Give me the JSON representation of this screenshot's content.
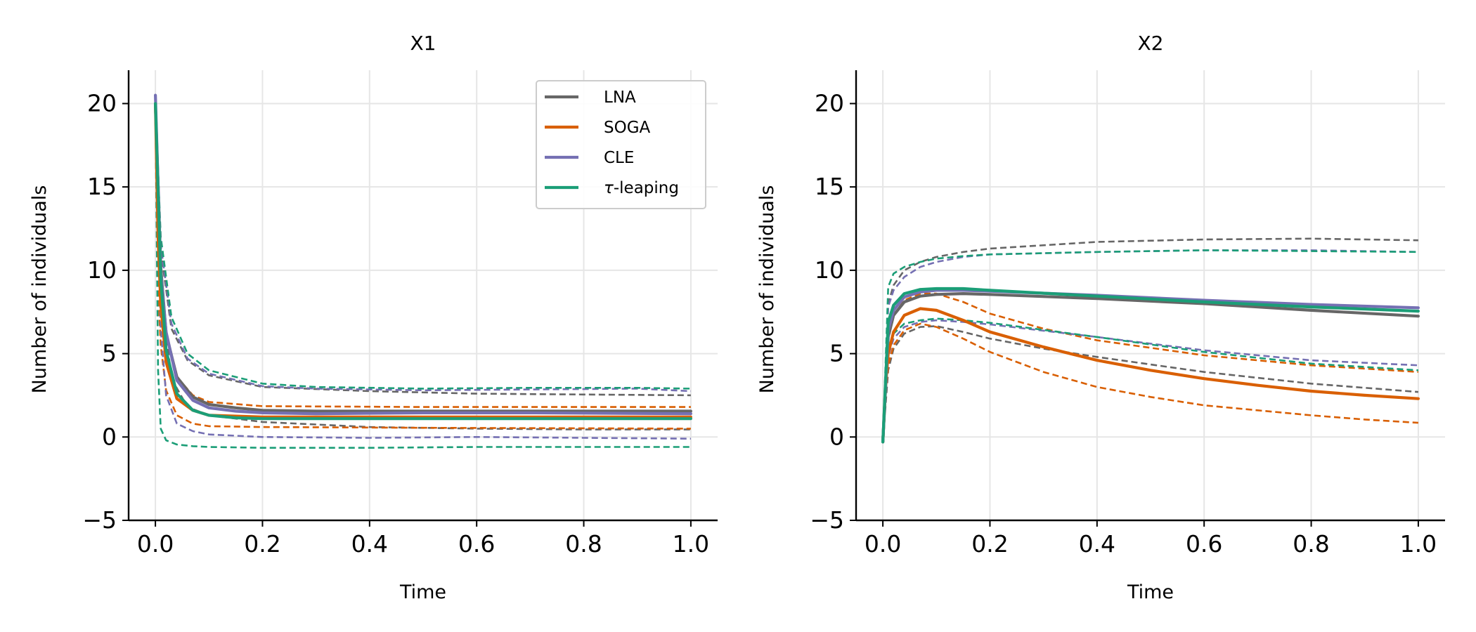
{
  "chart_data": [
    {
      "type": "line",
      "title": "X1",
      "xlabel": "Time",
      "ylabel": "Number of individuals",
      "xlim": [
        -0.05,
        1.05
      ],
      "ylim": [
        -5,
        22
      ],
      "xticks": [
        "0.0",
        "0.2",
        "0.4",
        "0.6",
        "0.8",
        "1.0"
      ],
      "yticks": [
        "−5",
        "0",
        "5",
        "10",
        "15",
        "20"
      ],
      "grid": true,
      "legend": "top-right",
      "series": [
        {
          "name": "LNA",
          "color": "#666666",
          "line": "solid",
          "x": [
            0,
            0.01,
            0.02,
            0.04,
            0.07,
            0.1,
            0.15,
            0.2,
            0.3,
            0.5,
            0.7,
            1.0
          ],
          "y": [
            20,
            10.2,
            6.2,
            3.6,
            2.4,
            1.95,
            1.75,
            1.6,
            1.55,
            1.55,
            1.55,
            1.55
          ]
        },
        {
          "name": "LNA upper",
          "color": "#666666",
          "line": "dashed",
          "x": [
            0,
            0.01,
            0.03,
            0.06,
            0.1,
            0.2,
            0.4,
            0.6,
            0.8,
            1.0
          ],
          "y": [
            20,
            11.2,
            6.5,
            4.6,
            3.7,
            3.0,
            2.75,
            2.6,
            2.55,
            2.5
          ]
        },
        {
          "name": "LNA lower",
          "color": "#666666",
          "line": "dashed",
          "x": [
            0,
            0.01,
            0.03,
            0.06,
            0.1,
            0.2,
            0.4,
            0.6,
            0.8,
            1.0
          ],
          "y": [
            20,
            9.2,
            3.5,
            1.8,
            1.3,
            0.9,
            0.6,
            0.5,
            0.45,
            0.45
          ]
        },
        {
          "name": "SOGA",
          "color": "#d95f02",
          "line": "solid",
          "x": [
            0,
            0.005,
            0.01,
            0.02,
            0.04,
            0.07,
            0.1,
            0.15,
            0.2,
            0.3,
            0.5,
            1.0
          ],
          "y": [
            20,
            12,
            8,
            4.5,
            2.3,
            1.6,
            1.3,
            1.25,
            1.2,
            1.2,
            1.2,
            1.2
          ]
        },
        {
          "name": "SOGA upper",
          "color": "#d95f02",
          "line": "dashed",
          "x": [
            0,
            0.005,
            0.01,
            0.02,
            0.04,
            0.07,
            0.1,
            0.2,
            0.5,
            1.0
          ],
          "y": [
            20,
            15,
            10.5,
            6.3,
            3.6,
            2.5,
            2.1,
            1.85,
            1.8,
            1.8
          ]
        },
        {
          "name": "SOGA lower",
          "color": "#d95f02",
          "line": "dashed",
          "x": [
            0,
            0.005,
            0.01,
            0.02,
            0.04,
            0.07,
            0.1,
            0.2,
            0.5,
            1.0
          ],
          "y": [
            20,
            9,
            5.5,
            2.8,
            1.3,
            0.8,
            0.65,
            0.6,
            0.55,
            0.5
          ]
        },
        {
          "name": "CLE",
          "color": "#7570b3",
          "line": "solid",
          "x": [
            0,
            0.01,
            0.02,
            0.04,
            0.07,
            0.1,
            0.15,
            0.2,
            0.3,
            0.5,
            0.7,
            1.0
          ],
          "y": [
            20.5,
            9.8,
            6.3,
            3.4,
            2.2,
            1.75,
            1.55,
            1.45,
            1.4,
            1.45,
            1.45,
            1.4
          ]
        },
        {
          "name": "CLE upper",
          "color": "#7570b3",
          "line": "dashed",
          "x": [
            0,
            0.01,
            0.03,
            0.06,
            0.1,
            0.2,
            0.3,
            0.5,
            0.7,
            0.9,
            1.0
          ],
          "y": [
            20.5,
            11.5,
            6.8,
            4.7,
            3.8,
            3.05,
            2.9,
            2.8,
            2.85,
            2.9,
            2.75
          ]
        },
        {
          "name": "CLE lower",
          "color": "#7570b3",
          "line": "dashed",
          "x": [
            0,
            0.01,
            0.02,
            0.04,
            0.07,
            0.1,
            0.2,
            0.4,
            0.6,
            0.8,
            1.0
          ],
          "y": [
            20.5,
            6.5,
            2.5,
            0.8,
            0.35,
            0.15,
            0.0,
            -0.05,
            0.0,
            -0.05,
            -0.1
          ]
        },
        {
          "name": "τ-leaping",
          "color": "#1b9e77",
          "line": "solid",
          "x": [
            0,
            0.01,
            0.02,
            0.04,
            0.07,
            0.1,
            0.15,
            0.2,
            0.3,
            0.5,
            0.7,
            1.0
          ],
          "y": [
            20,
            9.5,
            5.2,
            2.6,
            1.6,
            1.3,
            1.15,
            1.1,
            1.1,
            1.1,
            1.1,
            1.1
          ]
        },
        {
          "name": "τ-leaping upper",
          "color": "#1b9e77",
          "line": "dashed",
          "x": [
            0,
            0.01,
            0.03,
            0.06,
            0.1,
            0.2,
            0.3,
            0.5,
            0.7,
            0.9,
            1.0
          ],
          "y": [
            20,
            12,
            7.2,
            5.0,
            4.0,
            3.2,
            3.0,
            2.9,
            2.95,
            2.95,
            2.9
          ]
        },
        {
          "name": "τ-leaping lower",
          "color": "#1b9e77",
          "line": "dashed",
          "x": [
            0,
            0.005,
            0.01,
            0.02,
            0.04,
            0.07,
            0.1,
            0.2,
            0.4,
            0.6,
            0.8,
            1.0
          ],
          "y": [
            20,
            4,
            0.5,
            -0.2,
            -0.45,
            -0.55,
            -0.6,
            -0.65,
            -0.65,
            -0.6,
            -0.6,
            -0.6
          ]
        }
      ]
    },
    {
      "type": "line",
      "title": "X2",
      "xlabel": "Time",
      "ylabel": "Number of individuals",
      "xlim": [
        -0.05,
        1.05
      ],
      "ylim": [
        -5,
        22
      ],
      "xticks": [
        "0.0",
        "0.2",
        "0.4",
        "0.6",
        "0.8",
        "1.0"
      ],
      "yticks": [
        "−5",
        "0",
        "5",
        "10",
        "15",
        "20"
      ],
      "grid": true,
      "series": [
        {
          "name": "LNA",
          "color": "#666666",
          "line": "solid",
          "x": [
            0,
            0.01,
            0.02,
            0.04,
            0.07,
            0.1,
            0.15,
            0.2,
            0.4,
            0.6,
            0.8,
            1.0
          ],
          "y": [
            -0.3,
            6.0,
            7.3,
            8.1,
            8.45,
            8.55,
            8.6,
            8.55,
            8.3,
            8.0,
            7.6,
            7.25
          ]
        },
        {
          "name": "LNA upper",
          "color": "#666666",
          "line": "dashed",
          "x": [
            0,
            0.01,
            0.02,
            0.04,
            0.07,
            0.1,
            0.15,
            0.2,
            0.4,
            0.6,
            0.8,
            1.0
          ],
          "y": [
            -0.3,
            8.0,
            9.1,
            10.0,
            10.5,
            10.8,
            11.1,
            11.3,
            11.7,
            11.85,
            11.9,
            11.8
          ]
        },
        {
          "name": "LNA lower",
          "color": "#666666",
          "line": "dashed",
          "x": [
            0,
            0.01,
            0.02,
            0.04,
            0.07,
            0.1,
            0.15,
            0.2,
            0.3,
            0.4,
            0.6,
            0.8,
            1.0
          ],
          "y": [
            -0.3,
            4.0,
            5.3,
            6.2,
            6.6,
            6.65,
            6.3,
            5.9,
            5.3,
            4.8,
            3.9,
            3.2,
            2.7
          ]
        },
        {
          "name": "SOGA",
          "color": "#d95f02",
          "line": "solid",
          "x": [
            0,
            0.005,
            0.01,
            0.02,
            0.04,
            0.07,
            0.1,
            0.15,
            0.2,
            0.3,
            0.4,
            0.5,
            0.6,
            0.7,
            0.8,
            0.9,
            1.0
          ],
          "y": [
            -0.3,
            3.0,
            5.0,
            6.3,
            7.3,
            7.7,
            7.6,
            7.0,
            6.3,
            5.4,
            4.6,
            4.0,
            3.5,
            3.1,
            2.75,
            2.5,
            2.3
          ]
        },
        {
          "name": "SOGA upper",
          "color": "#d95f02",
          "line": "dashed",
          "x": [
            0,
            0.005,
            0.01,
            0.02,
            0.04,
            0.07,
            0.1,
            0.15,
            0.2,
            0.3,
            0.4,
            0.6,
            0.8,
            1.0
          ],
          "y": [
            -0.3,
            3.5,
            5.8,
            7.3,
            8.2,
            8.6,
            8.6,
            8.1,
            7.4,
            6.5,
            5.8,
            4.9,
            4.3,
            3.9
          ]
        },
        {
          "name": "SOGA lower",
          "color": "#d95f02",
          "line": "dashed",
          "x": [
            0,
            0.005,
            0.01,
            0.02,
            0.04,
            0.07,
            0.1,
            0.15,
            0.2,
            0.3,
            0.4,
            0.5,
            0.6,
            0.7,
            0.8,
            0.9,
            1.0
          ],
          "y": [
            -0.3,
            2.5,
            4.3,
            5.5,
            6.4,
            6.8,
            6.6,
            5.9,
            5.1,
            3.9,
            3.0,
            2.4,
            1.9,
            1.6,
            1.3,
            1.05,
            0.85
          ]
        },
        {
          "name": "CLE",
          "color": "#7570b3",
          "line": "solid",
          "x": [
            0,
            0.01,
            0.02,
            0.04,
            0.07,
            0.1,
            0.15,
            0.2,
            0.4,
            0.6,
            0.8,
            1.0
          ],
          "y": [
            -0.3,
            6.4,
            7.6,
            8.4,
            8.7,
            8.8,
            8.8,
            8.75,
            8.5,
            8.2,
            7.95,
            7.75
          ]
        },
        {
          "name": "CLE upper",
          "color": "#7570b3",
          "line": "dashed",
          "x": [
            0,
            0.01,
            0.02,
            0.04,
            0.07,
            0.1,
            0.15,
            0.2,
            0.4,
            0.6,
            0.8,
            1.0
          ],
          "y": [
            -0.3,
            7.8,
            8.8,
            9.6,
            10.2,
            10.5,
            10.8,
            10.95,
            11.1,
            11.2,
            11.2,
            11.1
          ]
        },
        {
          "name": "CLE lower",
          "color": "#7570b3",
          "line": "dashed",
          "x": [
            0,
            0.01,
            0.02,
            0.04,
            0.07,
            0.1,
            0.15,
            0.2,
            0.4,
            0.6,
            0.8,
            1.0
          ],
          "y": [
            -0.3,
            4.8,
            5.9,
            6.6,
            6.9,
            7.0,
            6.9,
            6.75,
            6.0,
            5.2,
            4.6,
            4.3
          ]
        },
        {
          "name": "τ-leaping",
          "color": "#1b9e77",
          "line": "solid",
          "x": [
            0,
            0.01,
            0.02,
            0.04,
            0.07,
            0.1,
            0.15,
            0.2,
            0.4,
            0.6,
            0.8,
            1.0
          ],
          "y": [
            -0.3,
            6.9,
            7.9,
            8.6,
            8.85,
            8.9,
            8.9,
            8.8,
            8.45,
            8.1,
            7.8,
            7.55
          ]
        },
        {
          "name": "τ-leaping upper",
          "color": "#1b9e77",
          "line": "dashed",
          "x": [
            0,
            0.01,
            0.02,
            0.04,
            0.07,
            0.1,
            0.15,
            0.2,
            0.4,
            0.6,
            0.8,
            1.0
          ],
          "y": [
            -0.3,
            9.0,
            9.8,
            10.2,
            10.5,
            10.7,
            10.85,
            10.95,
            11.1,
            11.2,
            11.15,
            11.1
          ]
        },
        {
          "name": "τ-leaping lower",
          "color": "#1b9e77",
          "line": "dashed",
          "x": [
            0,
            0.01,
            0.02,
            0.04,
            0.07,
            0.1,
            0.15,
            0.2,
            0.4,
            0.6,
            0.8,
            1.0
          ],
          "y": [
            -0.3,
            5.0,
            6.2,
            6.8,
            7.0,
            7.1,
            7.0,
            6.85,
            6.0,
            5.1,
            4.4,
            4.0
          ]
        }
      ]
    }
  ]
}
